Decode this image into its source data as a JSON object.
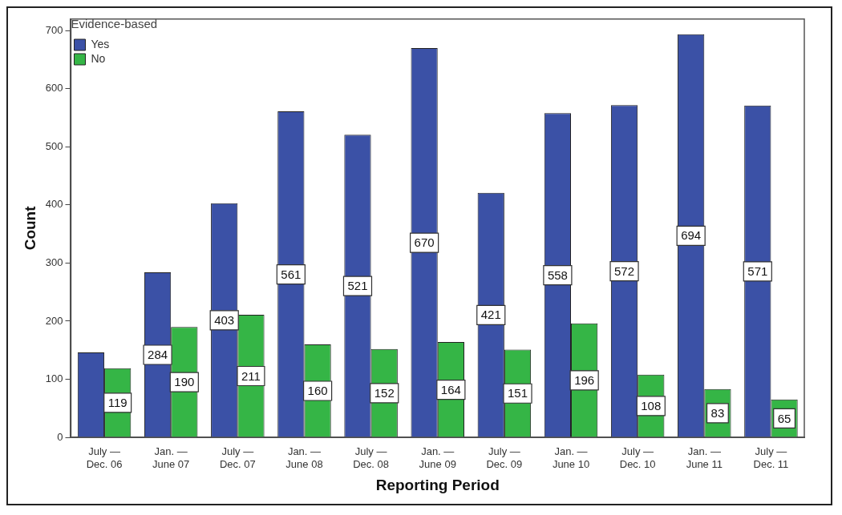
{
  "chart_data": {
    "type": "bar",
    "xlabel": "Reporting Period",
    "ylabel": "Count",
    "legend_title": "Evidence-based",
    "legend": "top left",
    "grid": false,
    "categories": [
      "July —\nDec. 06",
      "Jan. —\nJune 07",
      "July —\nDec. 07",
      "Jan. —\nJune 08",
      "July —\nDec. 08",
      "Jan. —\nJune 09",
      "July —\nDec. 09",
      "Jan. —\nJune 10",
      "July —\nDec. 10",
      "Jan. —\nJune 11",
      "July —\nDec. 11"
    ],
    "ylim": [
      0,
      720
    ],
    "yticks": [
      0,
      100,
      200,
      300,
      400,
      500,
      600,
      700
    ],
    "series": [
      {
        "name": "Yes",
        "color": "#3b51a6",
        "values": [
          146,
          284,
          403,
          561,
          521,
          670,
          421,
          558,
          572,
          694,
          571
        ],
        "value_labels": [
          null,
          "284",
          "403",
          "561",
          "521",
          "670",
          "421",
          "558",
          "572",
          "694",
          "571"
        ]
      },
      {
        "name": "No",
        "color": "#35b546",
        "values": [
          119,
          190,
          211,
          160,
          152,
          164,
          151,
          196,
          108,
          83,
          65
        ],
        "value_labels": [
          "119",
          "190",
          "211",
          "160",
          "152",
          "164",
          "151",
          "196",
          "108",
          "83",
          "65"
        ]
      }
    ]
  }
}
